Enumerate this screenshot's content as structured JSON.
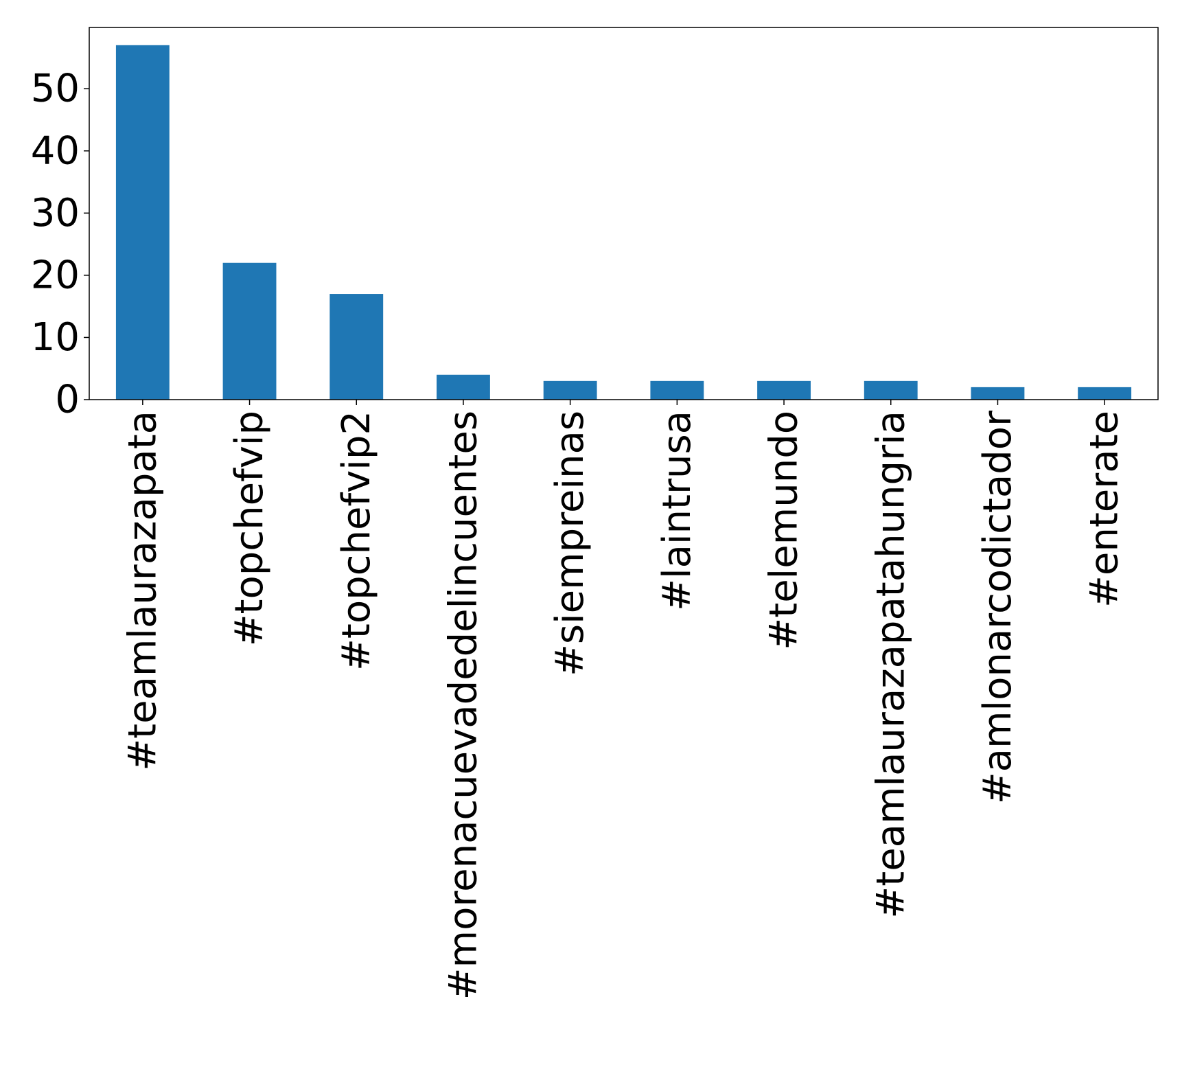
{
  "chart_data": {
    "type": "bar",
    "categories": [
      "#teamlaurazapata",
      "#topchefvip",
      "#topchefvip2",
      "#morenacuevadedelincuentes",
      "#siempreinas",
      "#laintrusa",
      "#telemundo",
      "#teamlaurazapatahungria",
      "#amlonarcodictador",
      "#enterate"
    ],
    "values": [
      57,
      22,
      17,
      4,
      3,
      3,
      3,
      3,
      2,
      2
    ],
    "title": "",
    "xlabel": "",
    "ylabel": "",
    "ylim": [
      0,
      59.85
    ],
    "yticks": [
      0,
      10,
      20,
      30,
      40,
      50
    ],
    "bar_color": "#1f77b4",
    "grid": false,
    "legend": "none"
  }
}
